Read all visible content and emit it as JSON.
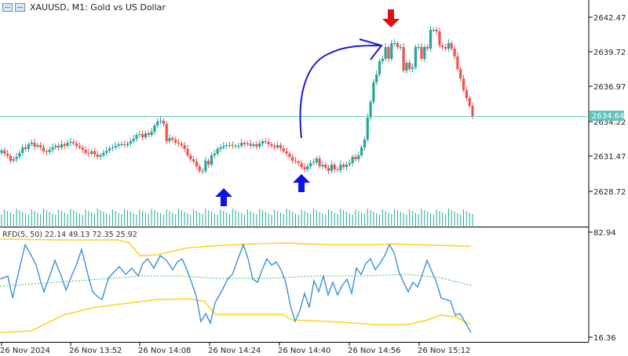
{
  "header": {
    "title": "XAUUSD, M1:  Gold vs US Dollar",
    "icons": [
      "chart-window-icon",
      "chart-window-icon"
    ]
  },
  "price_axis": {
    "labels": [
      "2642.47",
      "2639.72",
      "2636.97",
      "2634.22",
      "2631.47",
      "2628.72"
    ],
    "current_price": "2634.64"
  },
  "indicator": {
    "label": "RFD(5, 50) 22.14 49.13 72.35 25.92",
    "axis_labels": [
      "82.94",
      "16.36"
    ]
  },
  "time_axis": {
    "labels": [
      "26 Nov 2024",
      "26 Nov 13:52",
      "26 Nov 14:08",
      "26 Nov 14:24",
      "26 Nov 14:40",
      "26 Nov 14:56",
      "26 Nov 15:12"
    ]
  },
  "annotations": {
    "arrows": [
      "up-arrow-icon",
      "up-arrow-icon",
      "down-arrow-icon"
    ]
  },
  "colors": {
    "bull": "#26a69a",
    "bear": "#ef5350",
    "current_line": "#6fc9c2",
    "current_label_bg": "#62c3bb",
    "band": "#ffd21f",
    "rfd_line": "#3d8fd6",
    "mid_line": "#3fbf3f",
    "volume": "#26a69a",
    "arrow_blue": "#1010e8",
    "arrow_red": "#e01010",
    "drawing": "#1a1ad0"
  }
}
